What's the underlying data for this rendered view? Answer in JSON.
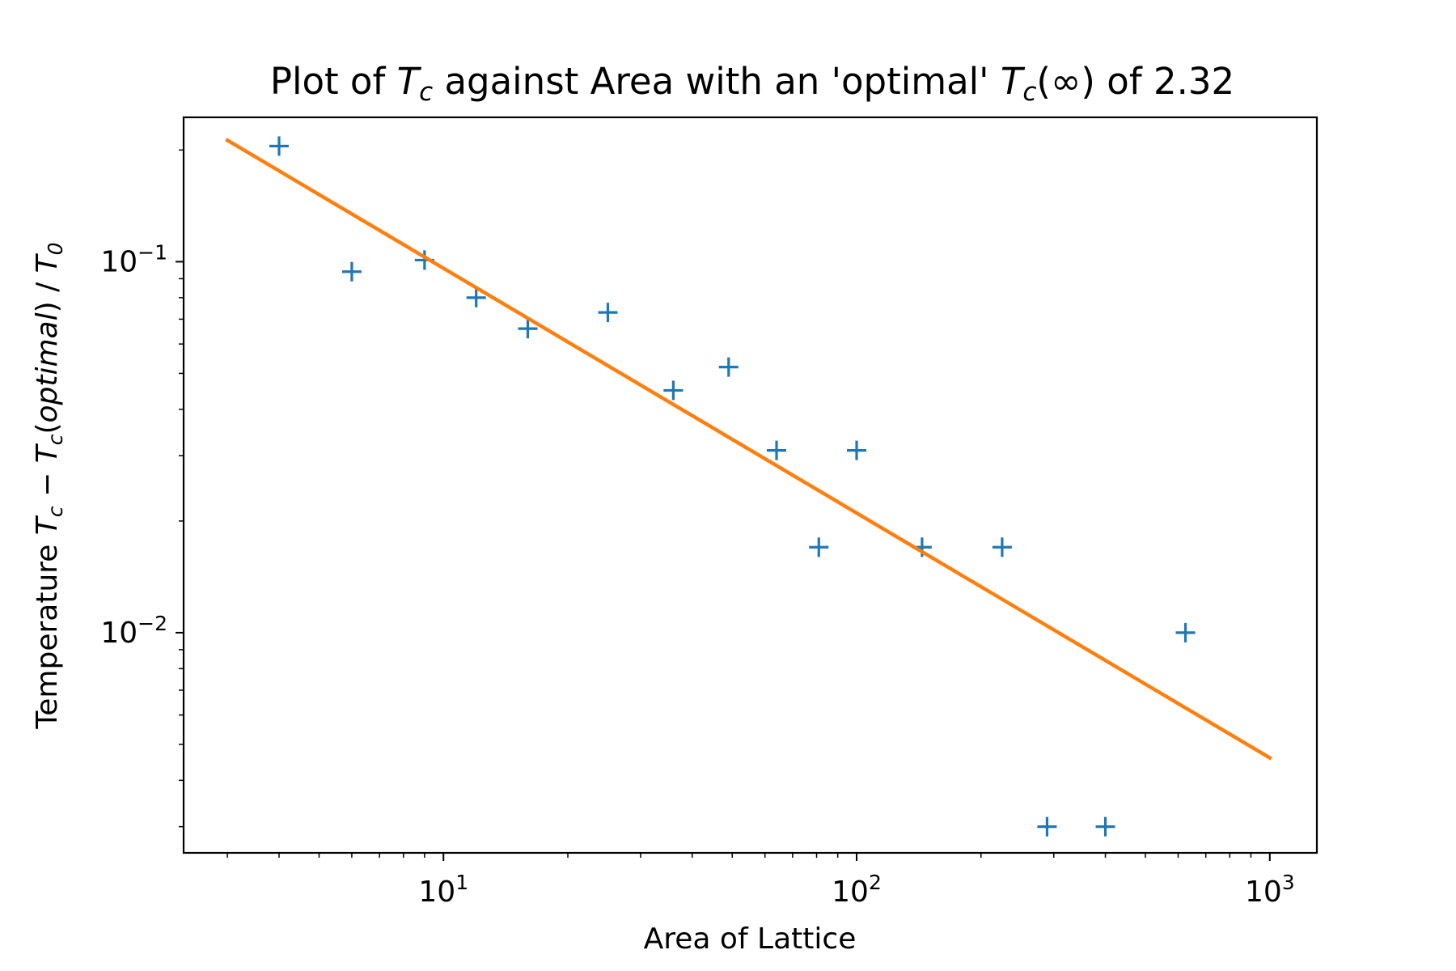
{
  "chart_data": {
    "type": "scatter",
    "title": "Plot of T_c against Area with an 'optimal' T_c(∞) of 2.32",
    "title_parts": {
      "prefix": "Plot of ",
      "tc_symbol": "T",
      "tc_sub": "c",
      "middle": " against Area with an 'optimal' ",
      "tc_inf_symbol": "T",
      "tc_inf_sub": "c",
      "tc_inf_arg": "(∞)",
      "suffix": " of 2.32"
    },
    "xlabel": "Area of Lattice",
    "ylabel": "Temperature T_c − T_c(optimal) / T_0",
    "ylabel_parts": {
      "prefix": "Temperature ",
      "t1": "T",
      "s1": "c",
      "minus": " − ",
      "t2": "T",
      "s2": "c",
      "open": "(",
      "opt": "optimal",
      "close": ") / ",
      "t3": "T",
      "s3": "0"
    },
    "x_scale": "log",
    "y_scale": "log",
    "xlim": [
      2.35,
      1300
    ],
    "ylim": [
      0.00255,
      0.245
    ],
    "x_major_ticks": [
      {
        "value": 10,
        "base": "10",
        "exp": "1"
      },
      {
        "value": 100,
        "base": "10",
        "exp": "2"
      },
      {
        "value": 1000,
        "base": "10",
        "exp": "3"
      }
    ],
    "y_major_ticks": [
      {
        "value": 0.1,
        "base": "10",
        "exp": "−1"
      },
      {
        "value": 0.01,
        "base": "10",
        "exp": "−2"
      }
    ],
    "grid": false,
    "legend": "none",
    "series": [
      {
        "type": "scatter",
        "marker": "+",
        "color": "#1f77b4",
        "x": [
          4,
          6,
          9,
          12,
          16,
          25,
          36,
          49,
          64,
          81,
          100,
          144,
          225,
          289,
          400,
          625
        ],
        "y": [
          0.205,
          0.094,
          0.101,
          0.08,
          0.066,
          0.073,
          0.045,
          0.052,
          0.031,
          0.017,
          0.031,
          0.017,
          0.017,
          0.003,
          0.003,
          0.01
        ]
      },
      {
        "type": "line",
        "color": "#ff7f0e",
        "x": [
          3,
          1000
        ],
        "y": [
          0.2125,
          0.0046
        ]
      }
    ]
  }
}
